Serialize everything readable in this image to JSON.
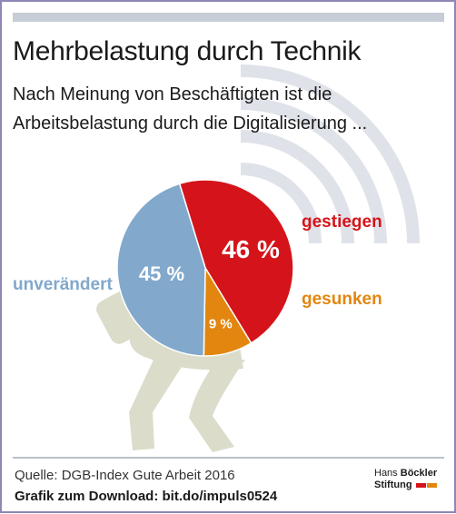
{
  "title": "Mehrbelastung durch Technik",
  "subtitle": "Nach Meinung von Beschäftigten ist die Arbeitsbelastung durch die Digitalisierung ...",
  "chart_data": {
    "type": "pie",
    "slices": [
      {
        "name": "gestiegen",
        "value": 46,
        "label": "46 %",
        "color": "#d4141a"
      },
      {
        "name": "gesunken",
        "value": 9,
        "label": "9 %",
        "color": "#e2860f"
      },
      {
        "name": "unverändert",
        "value": 45,
        "label": "45 %",
        "color": "#82a8cc"
      }
    ]
  },
  "footer": {
    "source": "Quelle: DGB-Index Gute Arbeit 2016",
    "download": "Grafik zum Download: bit.do/impuls0524"
  },
  "logo": {
    "line1_a": "Hans",
    "line1_b": "Böckler",
    "line2": "Stiftung",
    "colors": [
      "#d4141a",
      "#e2860f"
    ]
  },
  "decoration": {
    "figure": "person-carrying-pie-icon",
    "waves": "signal-waves-icon"
  }
}
